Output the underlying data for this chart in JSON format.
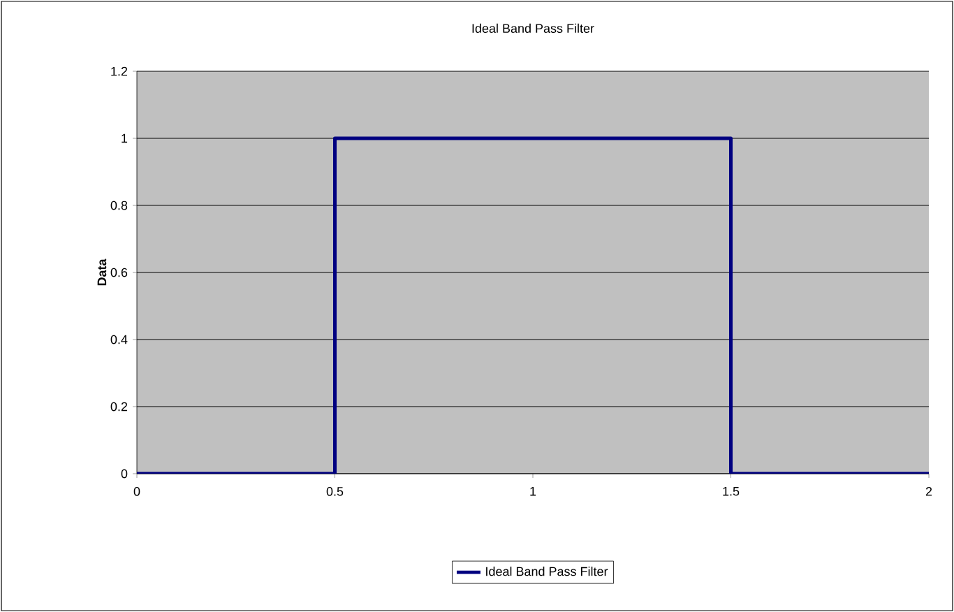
{
  "chart_data": {
    "type": "line",
    "title": "Ideal Band Pass Filter",
    "ylabel": "Data",
    "series": [
      {
        "name": "Ideal Band Pass Filter",
        "color": "#000080",
        "x": [
          0,
          0.5,
          0.5,
          1.5,
          1.5,
          2
        ],
        "values": [
          0,
          0,
          1,
          1,
          0,
          0
        ]
      }
    ],
    "xlim": [
      0,
      2
    ],
    "xticks": [
      0,
      0.5,
      1,
      1.5,
      2
    ],
    "ylim": [
      0,
      1.2
    ],
    "yticks": [
      0,
      0.2,
      0.4,
      0.6,
      0.8,
      1,
      1.2
    ],
    "grid": "y",
    "legend": "bottom",
    "marker": "none",
    "line_style": "solid"
  }
}
